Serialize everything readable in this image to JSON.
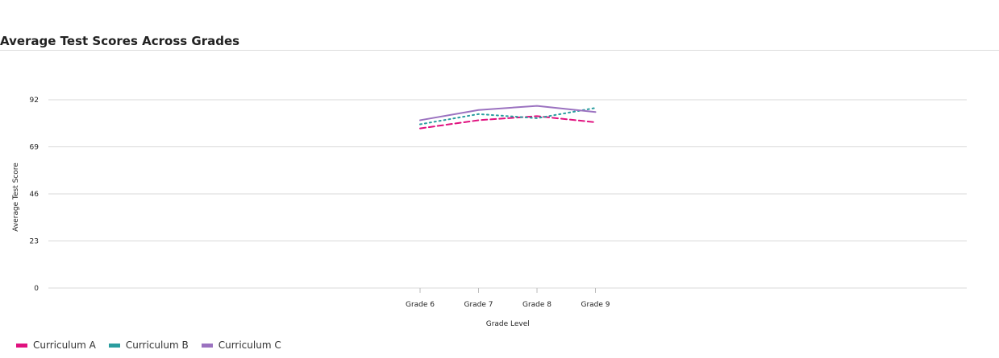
{
  "chart_data": {
    "type": "line",
    "title": "Average Test Scores Across Grades",
    "xlabel": "Grade Level",
    "ylabel": "Average Test Score",
    "categories": [
      "Grade 6",
      "Grade 7",
      "Grade 8",
      "Grade 9"
    ],
    "ylim": [
      0,
      92
    ],
    "yticks": [
      "0",
      "23",
      "46",
      "69",
      "92"
    ],
    "grid": true,
    "legend": "bottom-left",
    "series": [
      {
        "name": "Curriculum A",
        "values": [
          78,
          82,
          84,
          81
        ],
        "color": "#e0117f",
        "dash": "dashed"
      },
      {
        "name": "Curriculum B",
        "values": [
          80,
          85,
          83,
          88
        ],
        "color": "#2a9d9f",
        "dash": "dotted"
      },
      {
        "name": "Curriculum C",
        "values": [
          82,
          87,
          89,
          86
        ],
        "color": "#9b72c0",
        "dash": "solid"
      }
    ]
  }
}
